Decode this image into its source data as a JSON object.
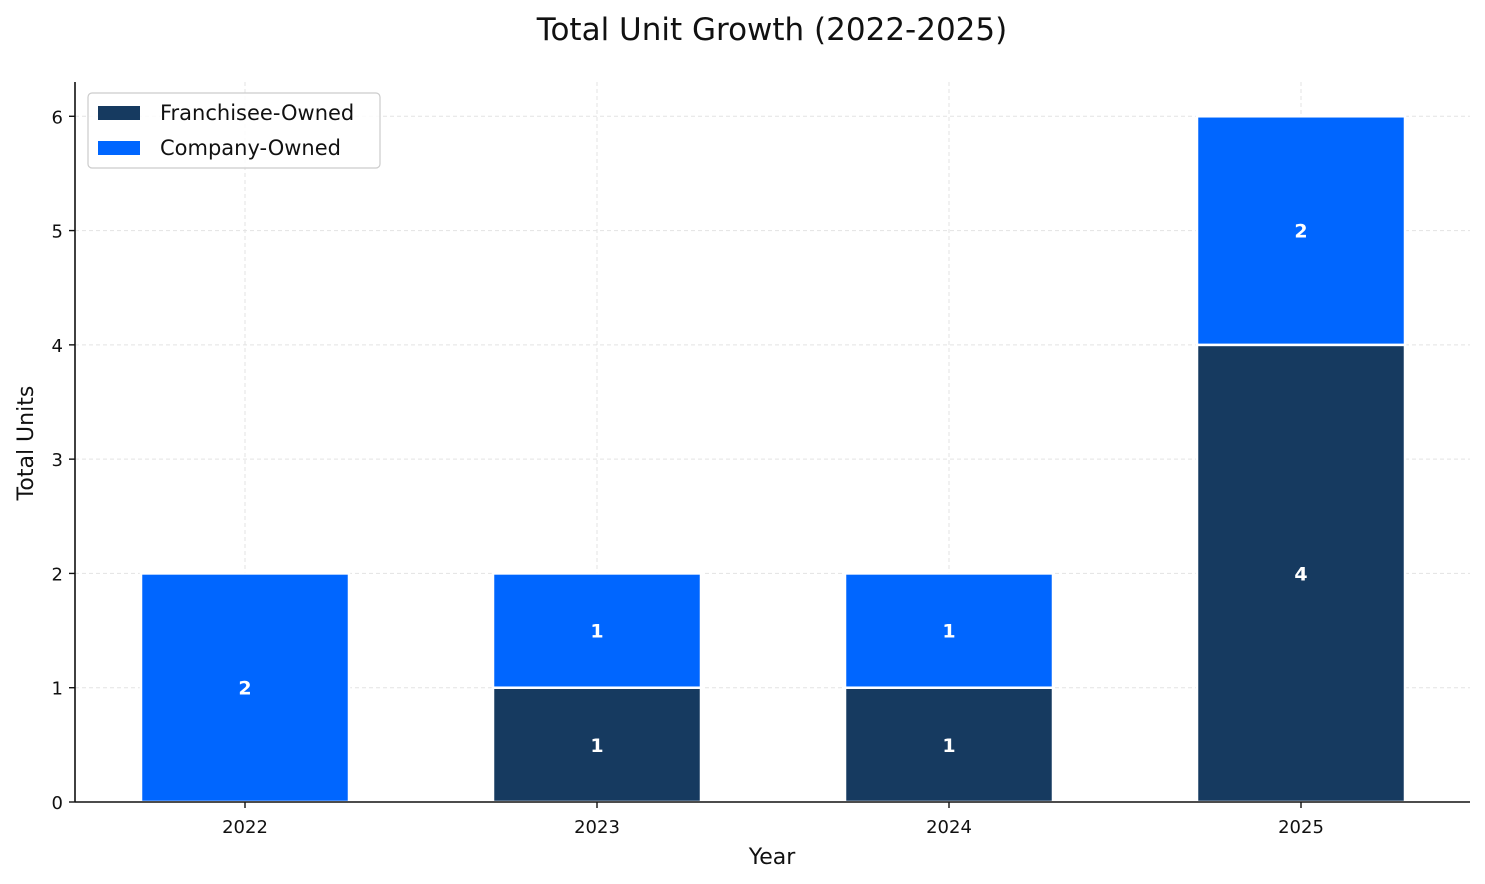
{
  "chart_data": {
    "type": "bar",
    "stacked": true,
    "title": "Total Unit Growth (2022-2025)",
    "xlabel": "Year",
    "ylabel": "Total Units",
    "categories": [
      "2022",
      "2023",
      "2024",
      "2025"
    ],
    "series": [
      {
        "name": "Franchisee-Owned",
        "values": [
          0,
          1,
          1,
          4
        ],
        "color": "#163a60"
      },
      {
        "name": "Company-Owned",
        "values": [
          2,
          1,
          1,
          2
        ],
        "color": "#0066ff"
      }
    ],
    "data_labels": [
      [
        "",
        "1",
        "1",
        "4"
      ],
      [
        "2",
        "1",
        "1",
        "2"
      ]
    ],
    "yticks": [
      0,
      1,
      2,
      3,
      4,
      5,
      6
    ],
    "ylim": [
      0,
      6.3
    ],
    "grid": true,
    "legend_position": "top-left"
  }
}
